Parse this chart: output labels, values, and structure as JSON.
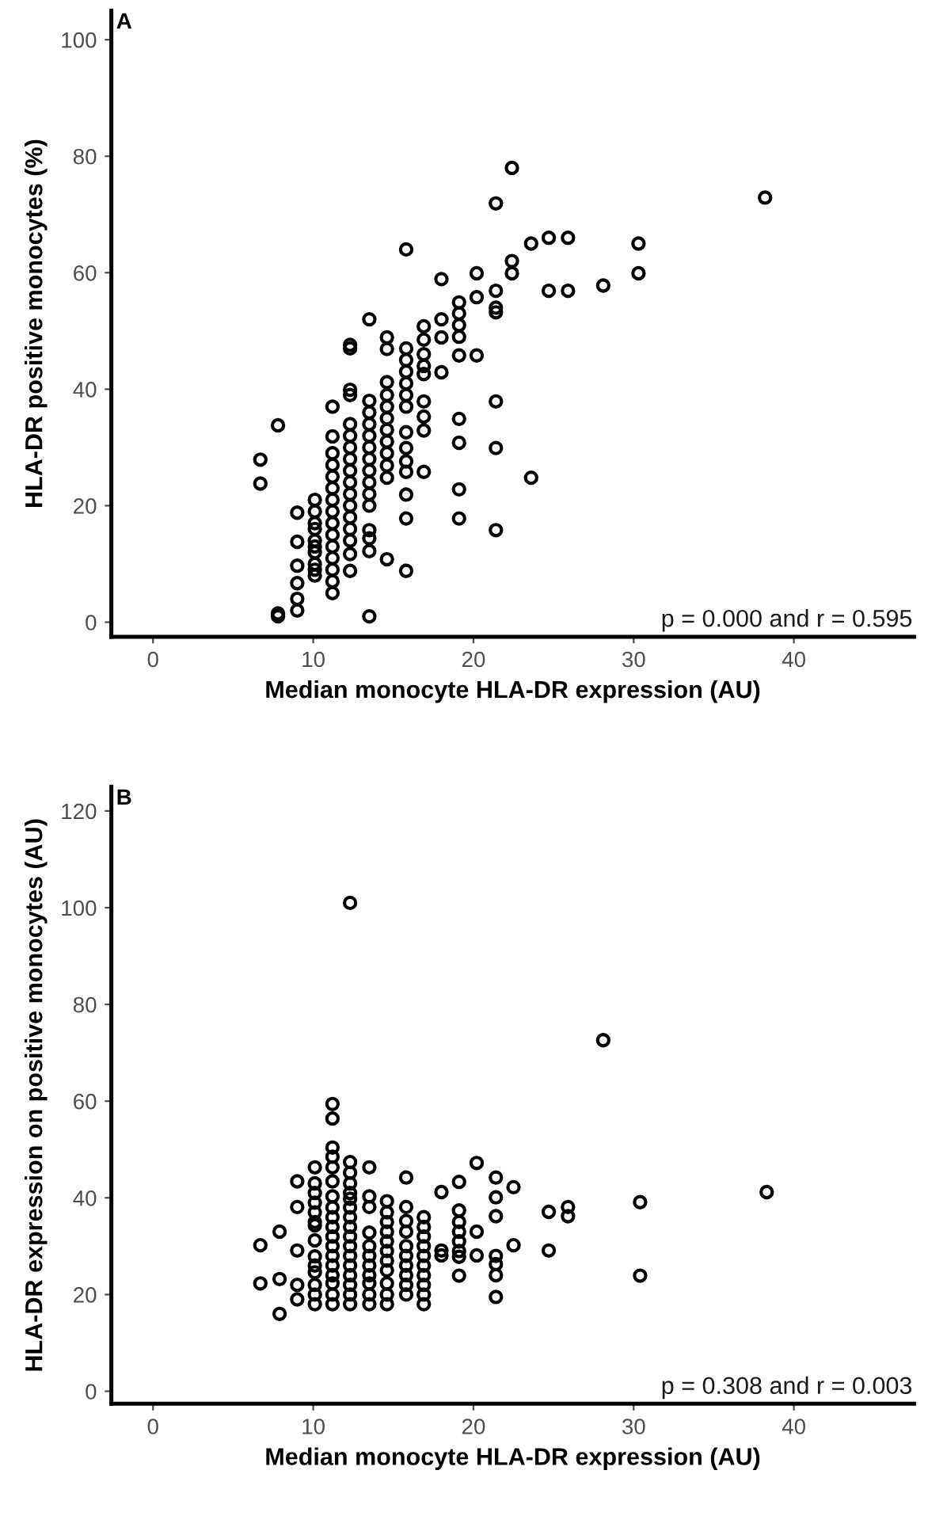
{
  "chart_data": [
    {
      "type": "scatter",
      "title": "A",
      "xlabel": "Median monocyte HLA-DR expression (AU)",
      "ylabel": "HLA-DR positive monocytes (%)",
      "annotations": [
        "p = 0.000 and r = 0.595"
      ],
      "xlim": [
        -2.6,
        47.5
      ],
      "ylim": [
        -2.5,
        105
      ],
      "xticks": [
        0,
        10,
        20,
        30,
        40
      ],
      "yticks": [
        0,
        20,
        40,
        60,
        80,
        100
      ],
      "grid": false,
      "marker": "circle",
      "series": [
        {
          "color": "#000000",
          "x": [
            6.7,
            6.7,
            7.8,
            7.8,
            7.8,
            9.0,
            9.0,
            9.0,
            9.0,
            9.0,
            9.0,
            10.1,
            10.1,
            10.1,
            10.1,
            10.1,
            10.1,
            10.1,
            10.1,
            10.1,
            10.1,
            11.2,
            11.2,
            11.2,
            11.2,
            11.2,
            11.2,
            11.2,
            11.2,
            11.2,
            11.2,
            11.2,
            11.2,
            11.2,
            11.2,
            11.2,
            12.3,
            12.3,
            12.3,
            12.3,
            12.3,
            12.3,
            12.3,
            12.3,
            12.3,
            12.3,
            12.3,
            12.3,
            12.3,
            12.3,
            12.3,
            12.3,
            12.3,
            13.5,
            13.5,
            13.5,
            13.5,
            13.5,
            13.5,
            13.5,
            13.5,
            13.5,
            13.5,
            13.5,
            13.5,
            13.5,
            13.5,
            13.5,
            14.6,
            14.6,
            14.6,
            14.6,
            14.6,
            14.6,
            14.6,
            14.6,
            14.6,
            14.6,
            14.6,
            14.6,
            15.8,
            15.8,
            15.8,
            15.8,
            15.8,
            15.8,
            15.8,
            15.8,
            15.8,
            15.8,
            15.8,
            15.8,
            15.8,
            15.8,
            16.9,
            16.9,
            16.9,
            16.9,
            16.9,
            16.9,
            16.9,
            16.9,
            16.9,
            18.0,
            18.0,
            18.0,
            18.0,
            19.1,
            19.1,
            19.1,
            19.1,
            19.1,
            19.1,
            19.1,
            19.1,
            19.1,
            20.2,
            20.2,
            20.2,
            21.4,
            21.4,
            21.4,
            21.4,
            21.4,
            21.4,
            21.4,
            22.4,
            22.4,
            22.4,
            23.6,
            23.6,
            24.7,
            24.7,
            25.9,
            25.9,
            28.1,
            30.3,
            30.3,
            38.2
          ],
          "values": [
            27.9,
            23.8,
            33.8,
            1.5,
            1,
            18.8,
            13.8,
            9.7,
            6.7,
            4,
            2,
            21,
            19,
            17,
            16,
            14,
            13,
            12,
            10,
            9,
            8,
            37,
            31.9,
            29,
            27,
            25,
            23,
            21,
            19,
            17,
            15,
            13,
            11,
            9,
            7,
            5,
            47.6,
            47,
            39.9,
            39,
            34,
            32,
            30,
            28,
            26,
            24,
            22,
            20,
            18,
            16,
            14,
            11.7,
            8.8,
            52,
            38,
            36,
            34,
            32,
            30,
            28,
            26,
            24,
            22,
            20,
            15.8,
            14.4,
            12.2,
            1,
            48.9,
            46.9,
            41.2,
            39,
            37,
            35,
            33,
            31,
            29,
            26.9,
            24.8,
            10.8,
            64,
            47,
            45,
            43,
            41,
            39,
            37,
            32.6,
            29.9,
            27.6,
            25.8,
            21.9,
            17.8,
            8.8,
            50.8,
            48.5,
            46,
            44,
            42.6,
            37.9,
            35.3,
            32.9,
            25.8,
            58.9,
            52,
            48.9,
            42.9,
            54.9,
            53,
            51,
            49,
            45.8,
            34.9,
            30.8,
            22.8,
            17.8,
            59.9,
            55.8,
            45.8,
            71.9,
            56.9,
            54,
            53.2,
            37.9,
            29.9,
            15.8,
            78,
            62,
            59.9,
            65,
            24.8,
            66,
            56.9,
            66,
            56.9,
            57.8,
            65,
            59.9,
            72.9
          ]
        }
      ]
    },
    {
      "type": "scatter",
      "title": "B",
      "xlabel": "Median monocyte HLA-DR expression (AU)",
      "ylabel": "HLA-DR expression on positive monocytes (AU)",
      "annotations": [
        "p = 0.308 and r = 0.003"
      ],
      "xlim": [
        -2.6,
        47.5
      ],
      "ylim": [
        -2.6,
        125
      ],
      "xticks": [
        0,
        10,
        20,
        30,
        40
      ],
      "yticks": [
        0,
        20,
        40,
        60,
        80,
        100,
        120
      ],
      "grid": false,
      "marker": "circle",
      "series": [
        {
          "color": "#000000",
          "x": [
            6.7,
            6.7,
            7.9,
            7.9,
            7.9,
            9.0,
            9.0,
            9.0,
            9.0,
            9.0,
            10.1,
            10.1,
            10.1,
            10.1,
            10.1,
            10.1,
            10.1,
            10.1,
            10.1,
            10.1,
            10.1,
            10.1,
            10.1,
            10.1,
            11.2,
            11.2,
            11.2,
            11.2,
            11.2,
            11.2,
            11.2,
            11.2,
            11.2,
            11.2,
            11.2,
            11.2,
            11.2,
            11.2,
            11.2,
            11.2,
            11.2,
            11.2,
            12.3,
            12.3,
            12.3,
            12.3,
            12.3,
            12.3,
            12.3,
            12.3,
            12.3,
            12.3,
            12.3,
            12.3,
            12.3,
            12.3,
            12.3,
            12.3,
            12.3,
            13.5,
            13.5,
            13.5,
            13.5,
            13.5,
            13.5,
            13.5,
            13.5,
            13.5,
            13.5,
            13.5,
            14.6,
            14.6,
            14.6,
            14.6,
            14.6,
            14.6,
            14.6,
            14.6,
            14.6,
            14.6,
            14.6,
            15.8,
            15.8,
            15.8,
            15.8,
            15.8,
            15.8,
            15.8,
            15.8,
            15.8,
            15.8,
            16.9,
            16.9,
            16.9,
            16.9,
            16.9,
            16.9,
            16.9,
            16.9,
            16.9,
            16.9,
            18.0,
            18.0,
            18.0,
            19.1,
            19.1,
            19.1,
            19.1,
            19.1,
            19.1,
            19.1,
            19.1,
            20.2,
            20.2,
            20.2,
            21.4,
            21.4,
            21.4,
            21.4,
            21.4,
            21.4,
            21.4,
            22.5,
            22.5,
            24.7,
            24.7,
            25.9,
            25.9,
            28.1,
            30.4,
            30.4,
            38.3
          ],
          "values": [
            30.2,
            22.3,
            33,
            23.2,
            16,
            43.4,
            38.1,
            29.1,
            22,
            19,
            46.3,
            43,
            41,
            39,
            37,
            35,
            34.3,
            31.2,
            27.9,
            26,
            24.6,
            22,
            20,
            18,
            59.4,
            56.4,
            50.4,
            48.5,
            46.3,
            43.4,
            40.3,
            38,
            36,
            34,
            32,
            30,
            28,
            26,
            24,
            22.3,
            20,
            18,
            101,
            47.4,
            45.2,
            43,
            41,
            39.8,
            38,
            36,
            34,
            32,
            30,
            28,
            26,
            24,
            22,
            20,
            18,
            46.3,
            40.3,
            38.1,
            32.8,
            30,
            28,
            26,
            24,
            22.3,
            20,
            18,
            39.3,
            37,
            35,
            33,
            31,
            29,
            27,
            25,
            22.3,
            20,
            18,
            44.2,
            38.1,
            35.2,
            33,
            30,
            28,
            26,
            24,
            22,
            20,
            36,
            34,
            32,
            30,
            28,
            26,
            24,
            22,
            20,
            18,
            41.2,
            29.1,
            28.1,
            43.3,
            37.4,
            35,
            33,
            31,
            29,
            27.8,
            23.9,
            47.2,
            33,
            28.1,
            44.2,
            40.1,
            36.2,
            28,
            26.3,
            24,
            19.5,
            42.2,
            30.2,
            37.1,
            29.1,
            38.1,
            36.2,
            72.6,
            39.1,
            23.9,
            41.2
          ]
        }
      ]
    }
  ]
}
